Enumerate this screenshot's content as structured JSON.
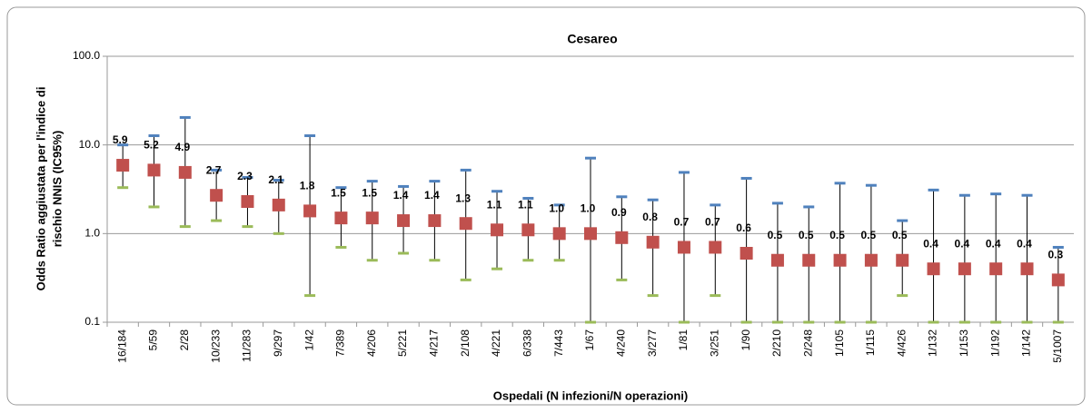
{
  "chart_data": {
    "type": "errorbar",
    "title": "Cesareo",
    "y_label": [
      "Odds Ratio aggiustata per l'indice di",
      "rischio NNIS (IC95%)"
    ],
    "x_label": "Ospedali (N infezioni/N operazioni)",
    "categories": [
      "16/184",
      "5/59",
      "2/28",
      "10/233",
      "11/283",
      "9/297",
      "1/42",
      "7/389",
      "4/206",
      "5/221",
      "4/217",
      "2/108",
      "4/221",
      "6/338",
      "7/443",
      "1/67",
      "4/240",
      "3/277",
      "1/81",
      "3/251",
      "1/90",
      "2/210",
      "2/248",
      "1/105",
      "1/115",
      "4/426",
      "1/132",
      "1/153",
      "1/192",
      "1/142",
      "5/1007"
    ],
    "series": [
      {
        "color": "#c0504d",
        "upper_color": "#4f81bd",
        "lower_color": "#9bbb59",
        "values": [
          5.9,
          5.2,
          4.9,
          2.7,
          2.3,
          2.1,
          1.8,
          1.5,
          1.5,
          1.4,
          1.4,
          1.3,
          1.1,
          1.1,
          1.0,
          1.0,
          0.9,
          0.8,
          0.7,
          0.7,
          0.6,
          0.5,
          0.5,
          0.5,
          0.5,
          0.5,
          0.4,
          0.4,
          0.4,
          0.4,
          0.3
        ],
        "value_labels": [
          "5.9",
          "5.2",
          "4.9",
          "2.7",
          "2.3",
          "2.1",
          "1.8",
          "1.5",
          "1.5",
          "1.4",
          "1.4",
          "1.3",
          "1.1",
          "1.1",
          "1.0",
          "1.0",
          "0.9",
          "0.8",
          "0.7",
          "0.7",
          "0.6",
          "0.5",
          "0.5",
          "0.5",
          "0.5",
          "0.5",
          "0.4",
          "0.4",
          "0.4",
          "0.4",
          "0.3"
        ],
        "upper": [
          10,
          12.7,
          20.4,
          5.2,
          4.3,
          4.0,
          12.7,
          3.3,
          3.9,
          3.4,
          3.9,
          5.2,
          3.0,
          2.5,
          2.1,
          7.1,
          2.6,
          2.4,
          4.9,
          2.1,
          4.2,
          2.2,
          2.0,
          3.7,
          3.5,
          1.4,
          3.1,
          2.7,
          2.8,
          2.7,
          0.7
        ],
        "lower": [
          3.3,
          2.0,
          1.2,
          1.4,
          1.2,
          1.0,
          0.2,
          0.7,
          0.5,
          0.6,
          0.5,
          0.3,
          0.4,
          0.5,
          0.5,
          0.1,
          0.3,
          0.2,
          0.1,
          0.2,
          0.1,
          0.1,
          0.1,
          0.1,
          0.1,
          0.2,
          0.1,
          0.1,
          0.1,
          0.1,
          0.1
        ]
      }
    ],
    "log_scale": true,
    "ylim": [
      0.1,
      100
    ],
    "yticks": [
      0.1,
      {
        "value": 1,
        "label": "1.0"
      },
      {
        "value": 10,
        "label": "10.0"
      },
      {
        "value": 100,
        "label": "100.0"
      }
    ],
    "grid": true
  }
}
